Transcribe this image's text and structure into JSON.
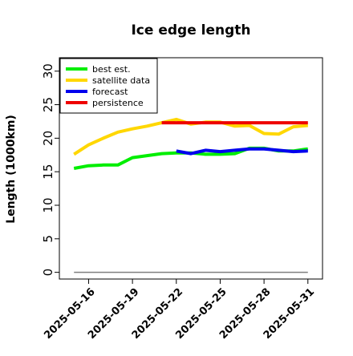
{
  "chart_data": {
    "type": "line",
    "title": "Ice edge length",
    "ylabel": "Length (1000km)",
    "xlabel": "",
    "ylim": [
      -1,
      32
    ],
    "xlim": [
      "2025-05-14",
      "2025-06-01"
    ],
    "yticks": [
      0,
      5,
      10,
      15,
      20,
      25,
      30
    ],
    "xticks": [
      "2025-05-16",
      "2025-05-19",
      "2025-05-22",
      "2025-05-25",
      "2025-05-28",
      "2025-05-31"
    ],
    "highlight_tick": "2025-05-22",
    "highlight_color": "#228b22",
    "grid": false,
    "legend_position": "top-left",
    "series": [
      {
        "name": "best est.",
        "color": "#00ee00",
        "x": [
          "2025-05-15",
          "2025-05-16",
          "2025-05-17",
          "2025-05-18",
          "2025-05-19",
          "2025-05-20",
          "2025-05-21",
          "2025-05-22",
          "2025-05-23",
          "2025-05-24",
          "2025-05-25",
          "2025-05-26",
          "2025-05-27",
          "2025-05-28",
          "2025-05-29",
          "2025-05-30",
          "2025-05-31"
        ],
        "y": [
          15.5,
          15.9,
          16.0,
          16.0,
          17.1,
          17.4,
          17.7,
          17.8,
          17.8,
          17.6,
          17.6,
          17.7,
          18.5,
          18.5,
          18.1,
          18.1,
          18.4
        ]
      },
      {
        "name": "satellite data",
        "color": "#ffd700",
        "x": [
          "2025-05-15",
          "2025-05-16",
          "2025-05-17",
          "2025-05-18",
          "2025-05-19",
          "2025-05-20",
          "2025-05-21",
          "2025-05-22",
          "2025-05-23",
          "2025-05-24",
          "2025-05-25",
          "2025-05-26",
          "2025-05-27",
          "2025-05-28",
          "2025-05-29",
          "2025-05-30",
          "2025-05-31"
        ],
        "y": [
          17.6,
          19.0,
          20.0,
          20.9,
          21.4,
          21.8,
          22.3,
          22.8,
          22.1,
          22.4,
          22.4,
          21.8,
          21.9,
          20.7,
          20.6,
          21.7,
          21.9
        ]
      },
      {
        "name": "forecast",
        "color": "#0000ee",
        "x": [
          "2025-05-22",
          "2025-05-23",
          "2025-05-24",
          "2025-05-25",
          "2025-05-26",
          "2025-05-27",
          "2025-05-28",
          "2025-05-29",
          "2025-05-30",
          "2025-05-31"
        ],
        "y": [
          18.1,
          17.7,
          18.2,
          18.0,
          18.2,
          18.4,
          18.4,
          18.2,
          18.0,
          18.1
        ]
      },
      {
        "name": "persistence",
        "color": "#ee0000",
        "x": [
          "2025-05-21",
          "2025-05-31"
        ],
        "y": [
          22.3,
          22.3
        ]
      }
    ],
    "reference_line": {
      "y": 0,
      "from": "2025-05-15",
      "to": "2025-05-31",
      "color": "#7f7f7f"
    }
  }
}
